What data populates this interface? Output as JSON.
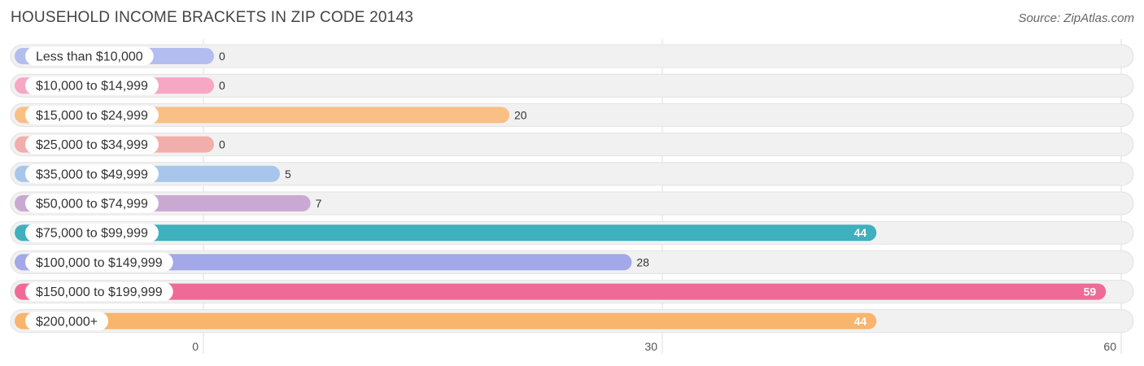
{
  "header": {
    "title": "HOUSEHOLD INCOME BRACKETS IN ZIP CODE 20143",
    "source": "Source: ZipAtlas.com"
  },
  "chart_data": {
    "type": "bar",
    "orientation": "horizontal",
    "title": "HOUSEHOLD INCOME BRACKETS IN ZIP CODE 20143",
    "xlabel": "",
    "ylabel": "",
    "xlim": [
      0,
      60
    ],
    "ticks": [
      0,
      30,
      60
    ],
    "grid": true,
    "categories": [
      "Less than $10,000",
      "$10,000 to $14,999",
      "$15,000 to $24,999",
      "$25,000 to $34,999",
      "$35,000 to $49,999",
      "$50,000 to $74,999",
      "$75,000 to $99,999",
      "$100,000 to $149,999",
      "$150,000 to $199,999",
      "$200,000+"
    ],
    "values": [
      0,
      0,
      20,
      0,
      5,
      7,
      44,
      28,
      59,
      44
    ],
    "colors": [
      "#b3bdf0",
      "#f7a6c4",
      "#f9bf85",
      "#f2aeaa",
      "#a8c6ec",
      "#c9a9d2",
      "#3fb0bd",
      "#a3a8e8",
      "#f06a98",
      "#f9b46e"
    ]
  }
}
